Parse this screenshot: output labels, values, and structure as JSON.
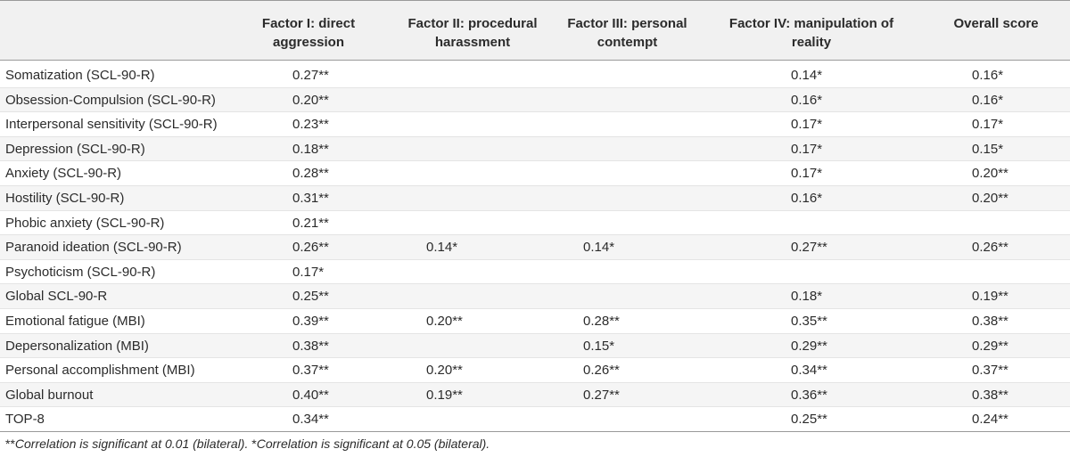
{
  "headers": [
    "",
    "Factor I: direct aggression",
    "Factor II: procedural harassment",
    "Factor III: personal contempt",
    "Factor IV: manipulation of reality",
    "Overall score"
  ],
  "rows": [
    [
      "Somatization (SCL-90-R)",
      "0.27**",
      "",
      "",
      "0.14*",
      "0.16*"
    ],
    [
      "Obsession-Compulsion (SCL-90-R)",
      "0.20**",
      "",
      "",
      "0.16*",
      "0.16*"
    ],
    [
      "Interpersonal sensitivity (SCL-90-R)",
      "0.23**",
      "",
      "",
      "0.17*",
      "0.17*"
    ],
    [
      "Depression (SCL-90-R)",
      "0.18**",
      "",
      "",
      "0.17*",
      "0.15*"
    ],
    [
      "Anxiety (SCL-90-R)",
      "0.28**",
      "",
      "",
      "0.17*",
      "0.20**"
    ],
    [
      "Hostility (SCL-90-R)",
      "0.31**",
      "",
      "",
      "0.16*",
      "0.20**"
    ],
    [
      "Phobic anxiety (SCL-90-R)",
      "0.21**",
      "",
      "",
      "",
      ""
    ],
    [
      "Paranoid ideation (SCL-90-R)",
      "0.26**",
      "0.14*",
      "0.14*",
      "0.27**",
      "0.26**"
    ],
    [
      "Psychoticism (SCL-90-R)",
      "0.17*",
      "",
      "",
      "",
      ""
    ],
    [
      "Global SCL-90-R",
      "0.25**",
      "",
      "",
      "0.18*",
      "0.19**"
    ],
    [
      "Emotional fatigue (MBI)",
      "0.39**",
      "0.20**",
      "0.28**",
      "0.35**",
      "0.38**"
    ],
    [
      "Depersonalization (MBI)",
      "0.38**",
      "",
      "0.15*",
      "0.29**",
      "0.29**"
    ],
    [
      "Personal accomplishment (MBI)",
      "0.37**",
      "0.20**",
      "0.26**",
      "0.34**",
      "0.37**"
    ],
    [
      "Global burnout",
      "0.40**",
      "0.19**",
      "0.27**",
      "0.36**",
      "0.38**"
    ],
    [
      "TOP-8",
      "0.34**",
      "",
      "",
      "0.25**",
      "0.24**"
    ]
  ],
  "footnote": {
    "mark1": "**",
    "text1": "Correlation is significant at 0.01 (bilateral).",
    "mark2": " *",
    "text2": "Correlation is significant at 0.05 (bilateral)."
  }
}
